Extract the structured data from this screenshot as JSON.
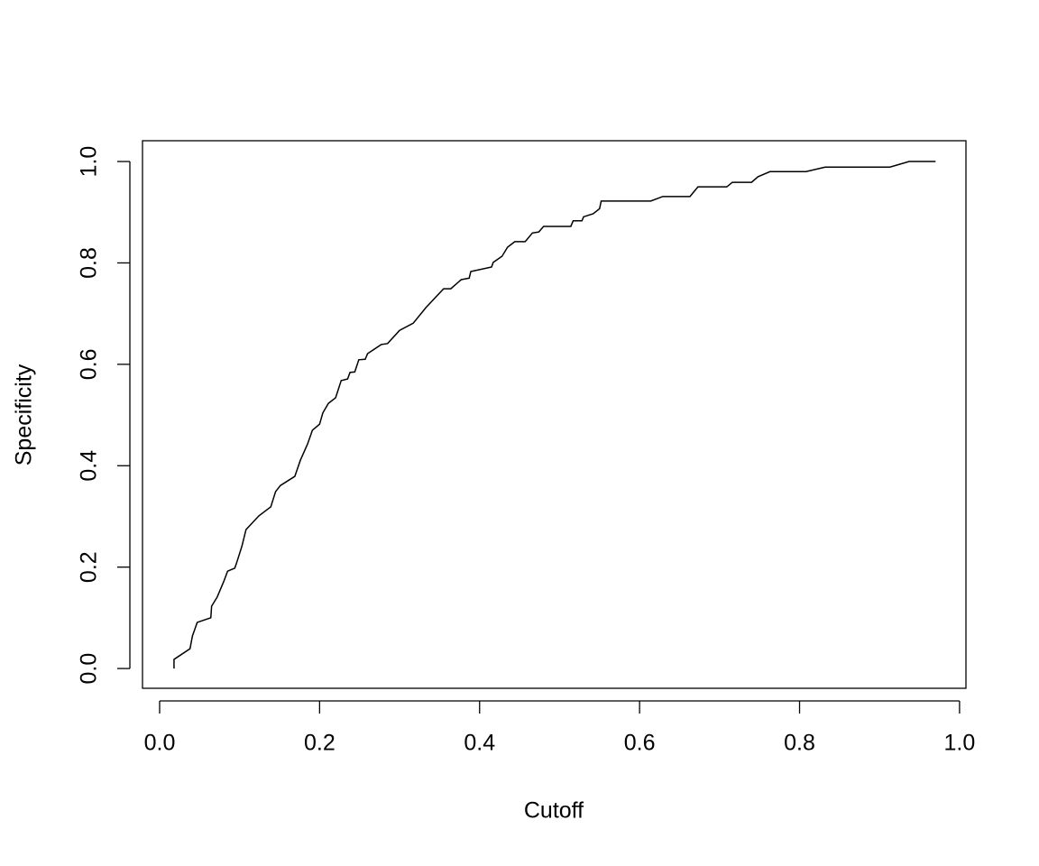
{
  "chart_data": {
    "type": "line",
    "xlabel": "Cutoff",
    "ylabel": "Specificity",
    "color": "#000000",
    "xlim": [
      -0.0214,
      1.008
    ],
    "ylim": [
      -0.039,
      1.041
    ],
    "xticks": [
      {
        "value": 0,
        "label": "0.0"
      },
      0.2,
      0.4,
      0.6,
      0.8,
      {
        "value": 1,
        "label": "1.0"
      }
    ],
    "yticks": [
      {
        "value": 0,
        "label": "0.0"
      },
      0.2,
      0.4,
      0.6,
      0.8,
      {
        "value": 1,
        "label": "1.0"
      }
    ],
    "x": [
      0.018,
      0.018,
      0.038,
      0.041,
      0.047,
      0.064,
      0.065,
      0.072,
      0.08,
      0.085,
      0.094,
      0.097,
      0.103,
      0.108,
      0.124,
      0.139,
      0.145,
      0.151,
      0.169,
      0.176,
      0.185,
      0.191,
      0.2,
      0.204,
      0.211,
      0.22,
      0.227,
      0.235,
      0.238,
      0.244,
      0.249,
      0.257,
      0.26,
      0.277,
      0.285,
      0.3,
      0.317,
      0.333,
      0.355,
      0.364,
      0.377,
      0.387,
      0.389,
      0.415,
      0.417,
      0.428,
      0.435,
      0.444,
      0.457,
      0.466,
      0.474,
      0.48,
      0.514,
      0.517,
      0.528,
      0.53,
      0.542,
      0.55,
      0.552,
      0.614,
      0.629,
      0.663,
      0.673,
      0.709,
      0.716,
      0.74,
      0.748,
      0.763,
      0.808,
      0.832,
      0.913,
      0.937,
      0.97
    ],
    "values": [
      0.0,
      0.018,
      0.039,
      0.064,
      0.091,
      0.1,
      0.123,
      0.141,
      0.171,
      0.192,
      0.198,
      0.212,
      0.242,
      0.274,
      0.301,
      0.319,
      0.349,
      0.361,
      0.379,
      0.411,
      0.443,
      0.47,
      0.482,
      0.504,
      0.523,
      0.534,
      0.568,
      0.571,
      0.584,
      0.585,
      0.609,
      0.61,
      0.621,
      0.639,
      0.641,
      0.667,
      0.681,
      0.712,
      0.749,
      0.749,
      0.767,
      0.77,
      0.783,
      0.792,
      0.801,
      0.813,
      0.831,
      0.842,
      0.842,
      0.859,
      0.861,
      0.872,
      0.872,
      0.883,
      0.883,
      0.891,
      0.897,
      0.907,
      0.922,
      0.922,
      0.931,
      0.931,
      0.95,
      0.95,
      0.959,
      0.959,
      0.97,
      0.98,
      0.98,
      0.989,
      0.989,
      1.0,
      1.0
    ]
  }
}
